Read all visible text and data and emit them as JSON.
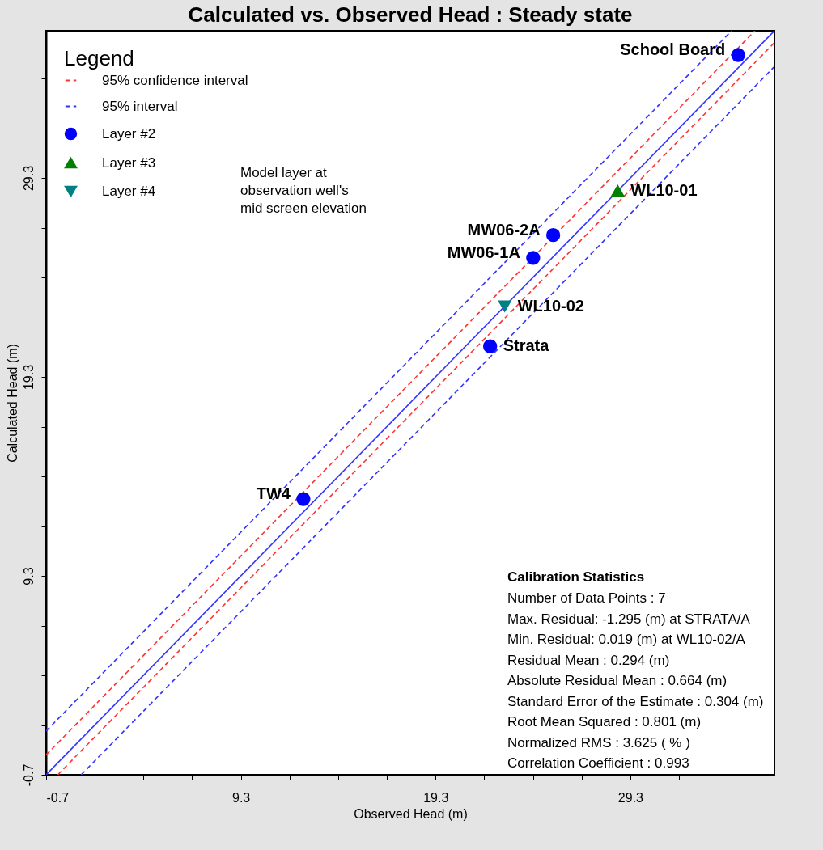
{
  "chart_data": {
    "type": "scatter",
    "title": "Calculated vs. Observed Head : Steady state",
    "xlabel": "Observed Head (m)",
    "ylabel": "Calculated Head (m)",
    "legend_title": "Legend",
    "xlim": [
      -0.7,
      36.7
    ],
    "ylim": [
      -0.7,
      36.7
    ],
    "xticks": [
      -0.7,
      {
        "value": 1.8,
        "label": null
      },
      {
        "value": 4.3,
        "label": null
      },
      {
        "value": 6.8,
        "label": null
      },
      9.3,
      {
        "value": 11.8,
        "label": null
      },
      {
        "value": 14.3,
        "label": null
      },
      {
        "value": 16.8,
        "label": null
      },
      19.3,
      {
        "value": 21.8,
        "label": null
      },
      {
        "value": 24.3,
        "label": null
      },
      {
        "value": 26.8,
        "label": null
      },
      29.3,
      {
        "value": 31.8,
        "label": null
      },
      {
        "value": 34.3,
        "label": null
      }
    ],
    "yticks": [
      -0.7,
      {
        "value": 1.8,
        "label": null
      },
      {
        "value": 4.3,
        "label": null
      },
      {
        "value": 6.8,
        "label": null
      },
      9.3,
      {
        "value": 11.8,
        "label": null
      },
      {
        "value": 14.3,
        "label": null
      },
      {
        "value": 16.8,
        "label": null
      },
      19.3,
      {
        "value": 21.8,
        "label": null
      },
      {
        "value": 24.3,
        "label": null
      },
      {
        "value": 26.8,
        "label": null
      },
      29.3,
      {
        "value": 31.8,
        "label": null
      },
      {
        "value": 34.3,
        "label": null
      }
    ],
    "grid": false,
    "legend": "top left",
    "series": [
      {
        "type": "line",
        "name": "95% confidence interval",
        "color": "#ff3333",
        "line_style": "dashed",
        "marker": "none",
        "x": [
          -0.7,
          35.7
        ],
        "values": [
          0.3,
          36.7
        ]
      },
      {
        "type": "line",
        "name": "95% interval",
        "color": "#3333ff",
        "line_style": "dashed",
        "marker": "none",
        "x": [
          -0.7,
          34.5
        ],
        "values": [
          1.5,
          36.7
        ]
      },
      {
        "type": "line",
        "color": "#ff3333",
        "line_style": "dashed",
        "x": [
          -0.1,
          36.7
        ],
        "values": [
          -0.7,
          36.1
        ]
      },
      {
        "type": "line",
        "color": "#3333ff",
        "line_style": "dashed",
        "x": [
          1.1,
          36.7
        ],
        "values": [
          -0.7,
          34.9
        ]
      },
      {
        "type": "line",
        "color": "#3333ff",
        "line_style": "solid",
        "x": [
          -0.7,
          36.7
        ],
        "values": [
          -0.7,
          36.7
        ]
      },
      {
        "name": "Layer #2",
        "color": "#0000ff",
        "marker": "circle",
        "x": [
          34.84,
          25.34,
          24.31,
          22.1,
          12.51
        ],
        "values": [
          35.48,
          26.43,
          25.28,
          20.84,
          13.16
        ]
      },
      {
        "name": "Layer #3",
        "color": "#008000",
        "marker": "triangle",
        "x": [
          28.65
        ],
        "values": [
          28.67
        ]
      },
      {
        "name": "Layer #4",
        "color": "#008080",
        "marker": "triangle-down",
        "x": [
          22.85
        ],
        "values": [
          22.84
        ]
      }
    ],
    "annotations": [
      {
        "text": "School Board",
        "x": 34.84,
        "y": 35.48
      },
      {
        "text": "WL10-01",
        "x": 28.65,
        "y": 28.67
      },
      {
        "text": "MW06-2A",
        "x": 25.34,
        "y": 26.43
      },
      {
        "text": "MW06-1A",
        "x": 24.31,
        "y": 25.28
      },
      {
        "text": "WL10-02",
        "x": 22.85,
        "y": 22.84
      },
      {
        "text": "Strata",
        "x": 22.1,
        "y": 20.84
      },
      {
        "text": "TW4",
        "x": 12.51,
        "y": 13.16
      },
      "Model layer at observation well's mid screen elevation",
      "Calibration Statistics",
      "Number of Data Points : 7",
      "Max. Residual: -1.295 (m) at STRATA/A",
      "Min. Residual: 0.019 (m) at WL10-02/A",
      "Residual Mean : 0.294 (m)",
      "Absolute Residual Mean : 0.664 (m)",
      "Standard Error of the Estimate : 0.304 (m)",
      "Root Mean Squared : 0.801 (m)",
      "Normalized RMS : 3.625 ( % )",
      "Correlation Coefficient : 0.993"
    ]
  }
}
